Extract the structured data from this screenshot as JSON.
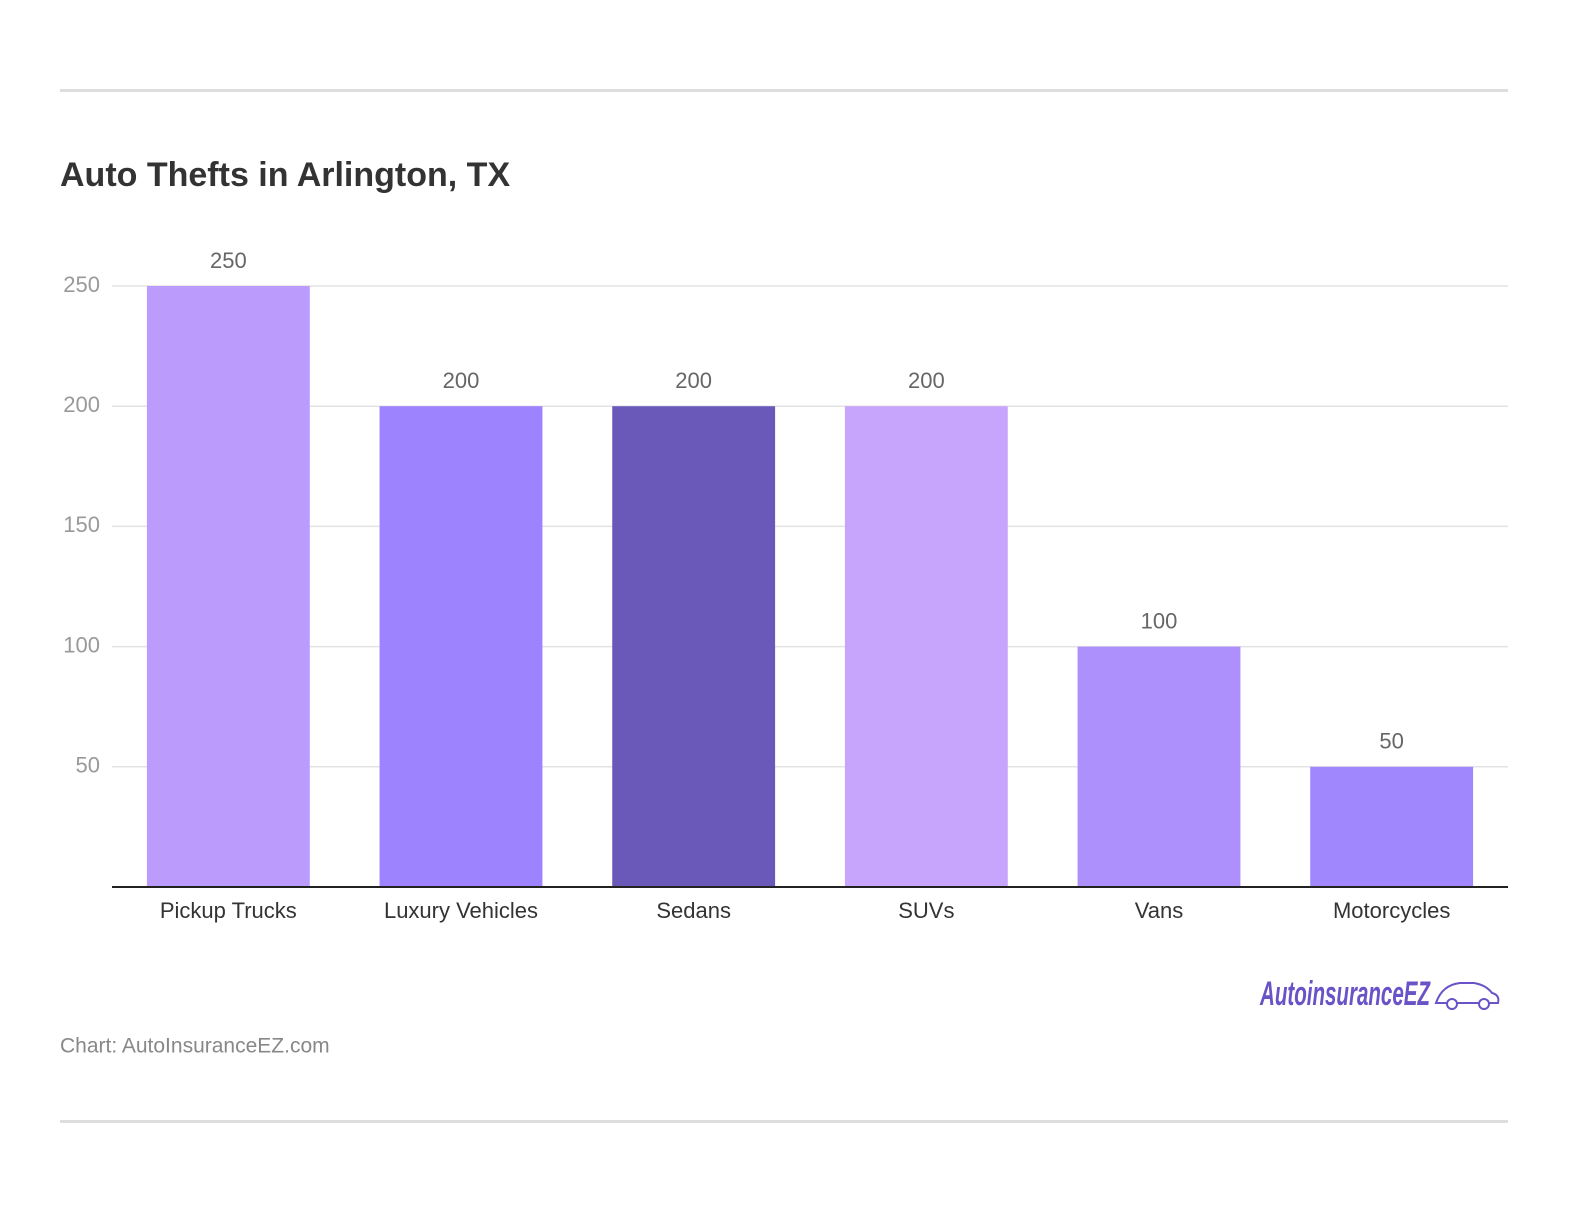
{
  "chart_data": {
    "type": "bar",
    "title": "Auto Thefts in Arlington, TX",
    "categories": [
      "Pickup Trucks",
      "Luxury Vehicles",
      "Sedans",
      "SUVs",
      "Vans",
      "Motorcycles"
    ],
    "values": [
      250,
      200,
      200,
      200,
      100,
      50
    ],
    "colors": [
      "#bb9bfc",
      "#9d84fe",
      "#6b59b9",
      "#c7a5fc",
      "#ae90fc",
      "#a087fd"
    ],
    "ylim": [
      0,
      250
    ],
    "yticks": [
      50,
      100,
      150,
      200,
      250
    ],
    "grid": true,
    "source": "Chart: AutoInsuranceEZ.com"
  },
  "logo": "AutoinsuranceEZ"
}
